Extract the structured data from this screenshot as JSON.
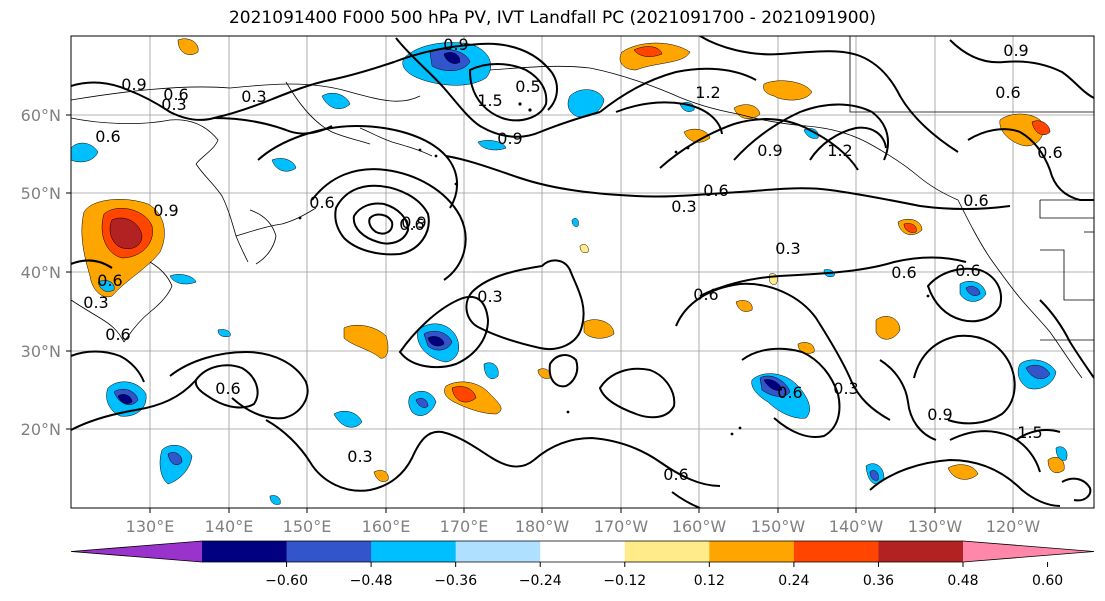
{
  "title": "2021091400 F000 500 hPa PV, IVT Landfall PC (2021091700 - 2021091900)",
  "lat_labels": [
    "60°N",
    "50°N",
    "40°N",
    "30°N",
    "20°N"
  ],
  "lon_labels": [
    "130°E",
    "140°E",
    "150°E",
    "160°E",
    "170°E",
    "180°W",
    "170°W",
    "160°W",
    "150°W",
    "140°W",
    "130°W",
    "120°W"
  ],
  "colorbar": {
    "colors": [
      "#9933cc",
      "#000080",
      "#3355cc",
      "#00bfff",
      "#b0e0ff",
      "#ffffff",
      "#ffeb88",
      "#ffa500",
      "#ff4500",
      "#b22222",
      "#ff88aa"
    ],
    "ticks": [
      "−0.60",
      "−0.48",
      "−0.36",
      "−0.24",
      "−0.12",
      "0.12",
      "0.24",
      "0.36",
      "0.48",
      "0.60"
    ]
  },
  "contour_labels": [
    "0.9",
    "0.9",
    "0.9",
    "0.6",
    "0.3",
    "1.5",
    "0.5",
    "1.2",
    "0.9",
    "0.6",
    "0.3",
    "0.6",
    "0.6",
    "0.9",
    "1.2",
    "0.9",
    "0.6",
    "0.9",
    "0.6",
    "0.3",
    "0.6",
    "0.3",
    "0.3",
    "0.6",
    "0.6",
    "0.6",
    "0.6",
    "0.3",
    "0.6",
    "0.6",
    "0.6",
    "0.3",
    "0.3",
    "0.6",
    "0.9",
    "1.5",
    "0.6"
  ]
}
